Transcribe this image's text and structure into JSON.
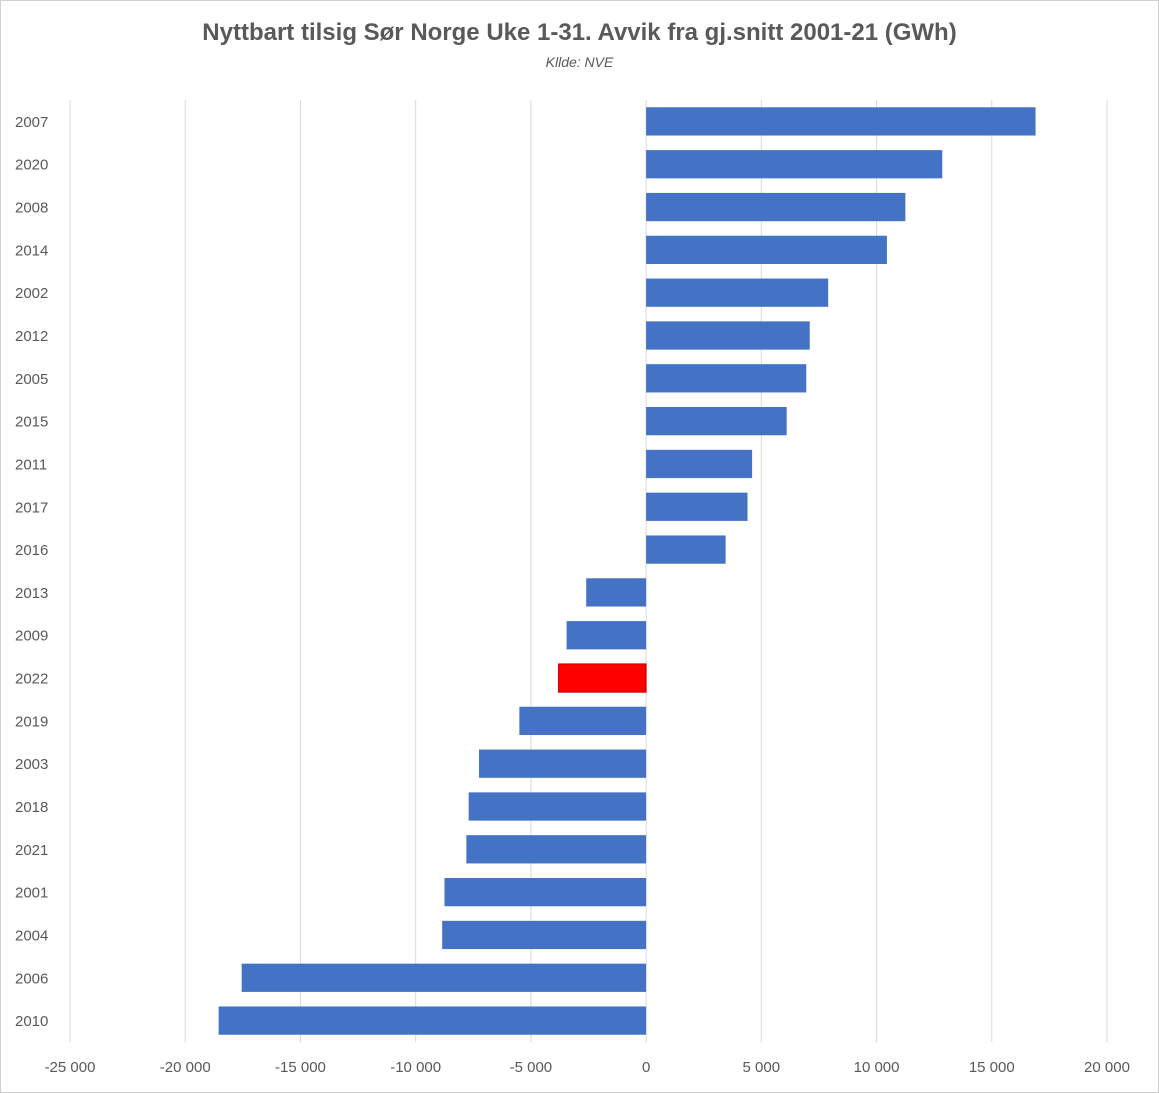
{
  "colors": {
    "bar": "#4472c4",
    "highlight": "#ff0000",
    "grid": "#d9d9d9",
    "text": "#595959"
  },
  "chart_data": {
    "type": "bar",
    "orientation": "horizontal",
    "title": "Nyttbart tilsig Sør Norge Uke 1-31. Avvik fra gj.snitt 2001-21 (GWh)",
    "subtitle": "Kllde: NVE",
    "xlabel": "",
    "ylabel": "",
    "xlim": [
      -25000,
      20000
    ],
    "xticks": [
      -25000,
      -20000,
      -15000,
      -10000,
      -5000,
      0,
      5000,
      10000,
      15000,
      20000
    ],
    "xtick_labels": [
      "-25 000",
      "-20 000",
      "-15 000",
      "-10 000",
      "-5 000",
      "0",
      "5 000",
      "10 000",
      "15 000",
      "20 000"
    ],
    "grid": "vertical",
    "highlight_category": "2022",
    "categories": [
      "2007",
      "2020",
      "2008",
      "2014",
      "2002",
      "2012",
      "2005",
      "2015",
      "2011",
      "2017",
      "2016",
      "2013",
      "2009",
      "2022",
      "2019",
      "2003",
      "2018",
      "2021",
      "2001",
      "2004",
      "2006",
      "2010"
    ],
    "values": [
      16900,
      12850,
      11250,
      10450,
      7900,
      7100,
      6950,
      6100,
      4600,
      4400,
      3450,
      -2600,
      -3450,
      -3800,
      -5500,
      -7250,
      -7700,
      -7800,
      -8750,
      -8850,
      -17550,
      -18550
    ]
  }
}
